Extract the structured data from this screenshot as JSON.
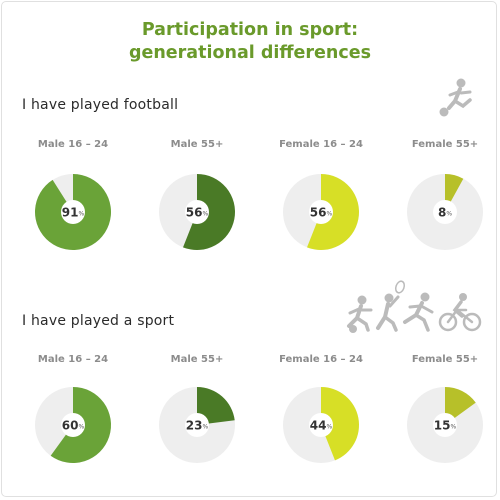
{
  "title_line1": "Participation in sport:",
  "title_line2": "generational differences",
  "colors": {
    "title": "#6a9a2b",
    "track": "#eeeeee",
    "icon": "#bbbbbb"
  },
  "chart_data": [
    {
      "type": "pie",
      "title": "I have played football",
      "categories": [
        "Male 16 – 24",
        "Male 55+",
        "Female 16 – 24",
        "Female 55+"
      ],
      "values": [
        91,
        56,
        56,
        8
      ],
      "unit": "%",
      "colors": [
        "#6aa338",
        "#4a7a26",
        "#d7df26",
        "#b7c029"
      ]
    },
    {
      "type": "pie",
      "title": "I have played a sport",
      "categories": [
        "Male 16 – 24",
        "Male 55+",
        "Female 16 – 24",
        "Female 55+"
      ],
      "values": [
        60,
        23,
        44,
        15
      ],
      "unit": "%",
      "colors": [
        "#6aa338",
        "#4a7a26",
        "#d7df26",
        "#b7c029"
      ]
    }
  ]
}
